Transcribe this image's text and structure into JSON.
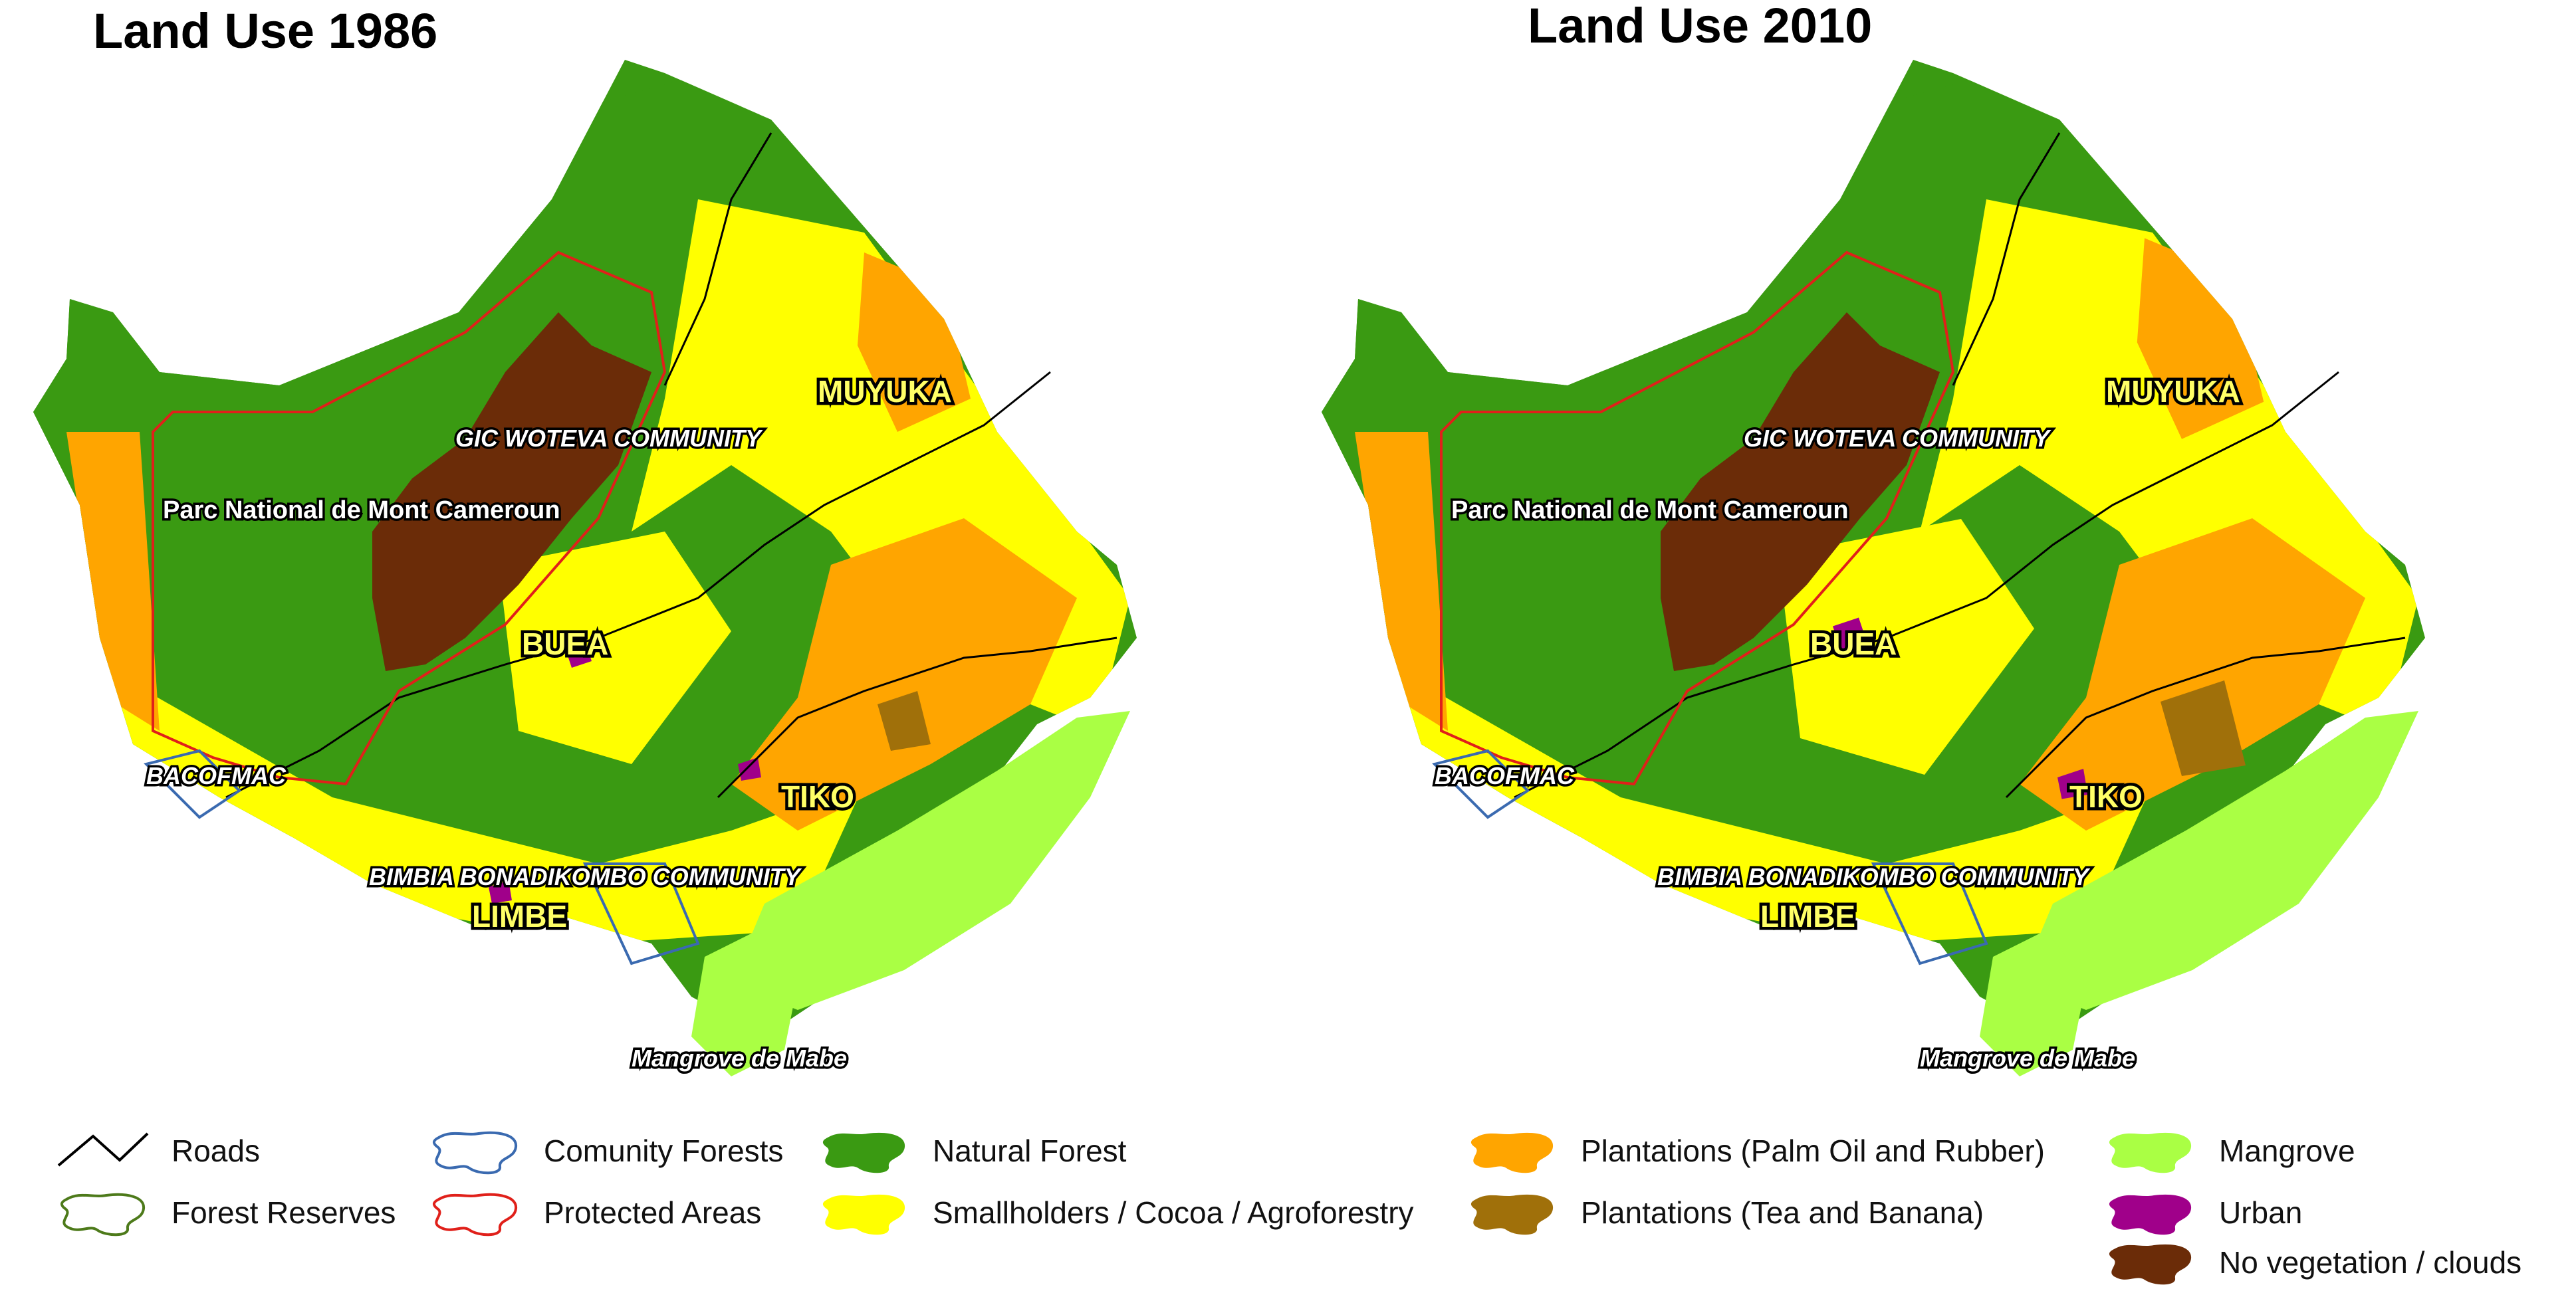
{
  "maps": [
    {
      "title": "Land Use 1986",
      "labels": {
        "muyuka": "MUYUKA",
        "gic_woteva": "GIC WOTEVA COMMUNITY",
        "park": "Parc National de Mont Cameroun",
        "buea": "BUEA",
        "bacofmac": "BACOFMAC",
        "tiko": "TIKO",
        "bimbia": "BIMBIA BONADIKOMBO COMMUNITY",
        "limbe": "LIMBE",
        "mangrove_mabe": "Mangrove de Mabe"
      }
    },
    {
      "title": "Land Use 2010",
      "labels": {
        "muyuka": "MUYUKA",
        "gic_woteva": "GIC WOTEVA COMMUNITY",
        "park": "Parc National de Mont Cameroun",
        "buea": "BUEA",
        "bacofmac": "BACOFMAC",
        "tiko": "TIKO",
        "bimbia": "BIMBIA BONADIKOMBO COMMUNITY",
        "limbe": "LIMBE",
        "mangrove_mabe": "Mangrove de Mabe"
      }
    }
  ],
  "colors": {
    "natural_forest": "#3a9a12",
    "smallholders": "#ffff00",
    "plantations_palm": "#ffa500",
    "plantations_tea": "#a0700a",
    "mangrove": "#aaff44",
    "urban": "#a0008a",
    "no_vegetation": "#6b2c08",
    "roads": "#000000",
    "forest_reserves": "#4d7a1a",
    "community_forests": "#3a6ab0",
    "protected_areas": "#e0201a"
  },
  "legend": [
    {
      "key": "roads",
      "label": "Roads",
      "icon": "road-line-icon"
    },
    {
      "key": "forest_reserves",
      "label": "Forest Reserves",
      "icon": "outline-blob-icon"
    },
    {
      "key": "community_forests",
      "label": "Comunity Forests",
      "icon": "outline-blob-icon"
    },
    {
      "key": "protected_areas",
      "label": "Protected Areas",
      "icon": "outline-blob-icon"
    },
    {
      "key": "natural_forest",
      "label": "Natural Forest",
      "icon": "filled-blob-icon"
    },
    {
      "key": "smallholders",
      "label": "Smallholders / Cocoa / Agroforestry",
      "icon": "filled-blob-icon"
    },
    {
      "key": "plantations_palm",
      "label": "Plantations (Palm Oil and Rubber)",
      "icon": "filled-blob-icon"
    },
    {
      "key": "plantations_tea",
      "label": "Plantations (Tea and Banana)",
      "icon": "filled-blob-icon"
    },
    {
      "key": "mangrove",
      "label": "Mangrove",
      "icon": "filled-blob-icon"
    },
    {
      "key": "urban",
      "label": "Urban",
      "icon": "filled-blob-icon"
    },
    {
      "key": "no_vegetation",
      "label": "No vegetation / clouds",
      "icon": "filled-blob-icon"
    }
  ]
}
